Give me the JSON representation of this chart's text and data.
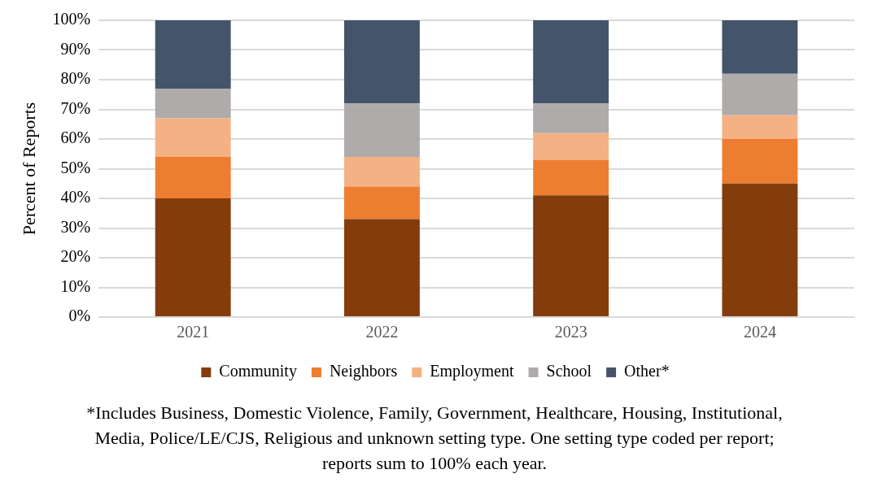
{
  "chart_data": {
    "type": "bar",
    "stacked": true,
    "ylabel": "Percent of Reports",
    "categories": [
      "2021",
      "2022",
      "2023",
      "2024"
    ],
    "series": [
      {
        "name": "Community",
        "color": "#843c0c",
        "values": [
          40,
          33,
          41,
          45
        ]
      },
      {
        "name": "Neighbors",
        "color": "#ed7d31",
        "values": [
          14,
          11,
          12,
          15
        ]
      },
      {
        "name": "Employment",
        "color": "#f4b183",
        "values": [
          13,
          10,
          9,
          8
        ]
      },
      {
        "name": "School",
        "color": "#afabab",
        "values": [
          10,
          18,
          10,
          14
        ]
      },
      {
        "name": "Other*",
        "color": "#44546a",
        "values": [
          23,
          28,
          28,
          18
        ]
      }
    ],
    "ylim": [
      0,
      100
    ],
    "yticks": [
      {
        "value": 0,
        "label": "0%"
      },
      {
        "value": 10,
        "label": "10%"
      },
      {
        "value": 20,
        "label": "20%"
      },
      {
        "value": 30,
        "label": "30%"
      },
      {
        "value": 40,
        "label": "40%"
      },
      {
        "value": 50,
        "label": "50%"
      },
      {
        "value": 60,
        "label": "60%"
      },
      {
        "value": 70,
        "label": "70%"
      },
      {
        "value": 80,
        "label": "80%"
      },
      {
        "value": 90,
        "label": "90%"
      },
      {
        "value": 100,
        "label": "100%"
      }
    ],
    "grid": "y",
    "legend": "bottom",
    "annotations": [
      "*Includes Business, Domestic Violence, Family, Government, Healthcare, Housing, Institutional, Media, Police/LE/CJS, Religious and unknown setting type. One setting type coded per report; reports sum to 100% each year."
    ]
  }
}
